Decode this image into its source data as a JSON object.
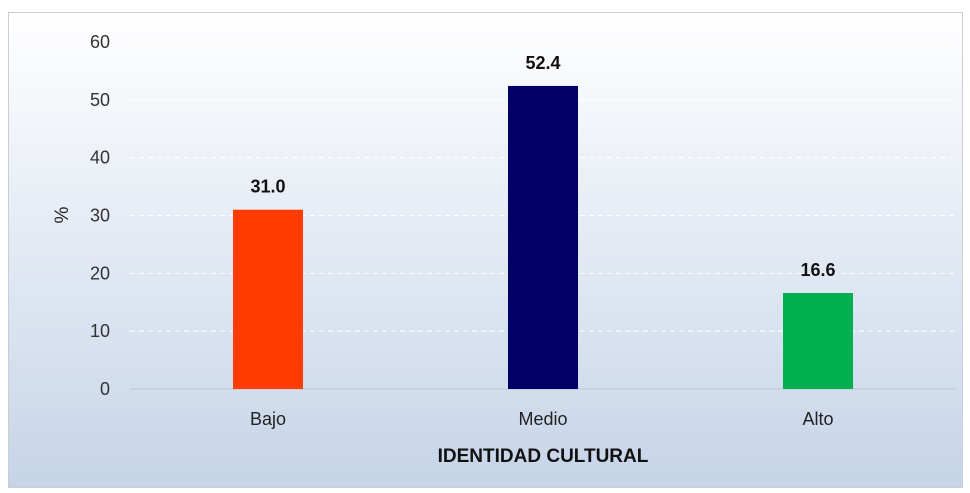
{
  "chart_data": {
    "type": "bar",
    "categories": [
      "Bajo",
      "Medio",
      "Alto"
    ],
    "values": [
      31.0,
      52.4,
      16.6
    ],
    "value_labels": [
      "31.0",
      "52.4",
      "16.6"
    ],
    "colors": [
      "#ff3b00",
      "#000066",
      "#00b050"
    ],
    "xlabel": "IDENTIDAD CULTURAL",
    "ylabel": "%",
    "ylim": [
      0,
      60
    ],
    "yticks": [
      0,
      10,
      20,
      30,
      40,
      50,
      60
    ],
    "grid": true
  }
}
